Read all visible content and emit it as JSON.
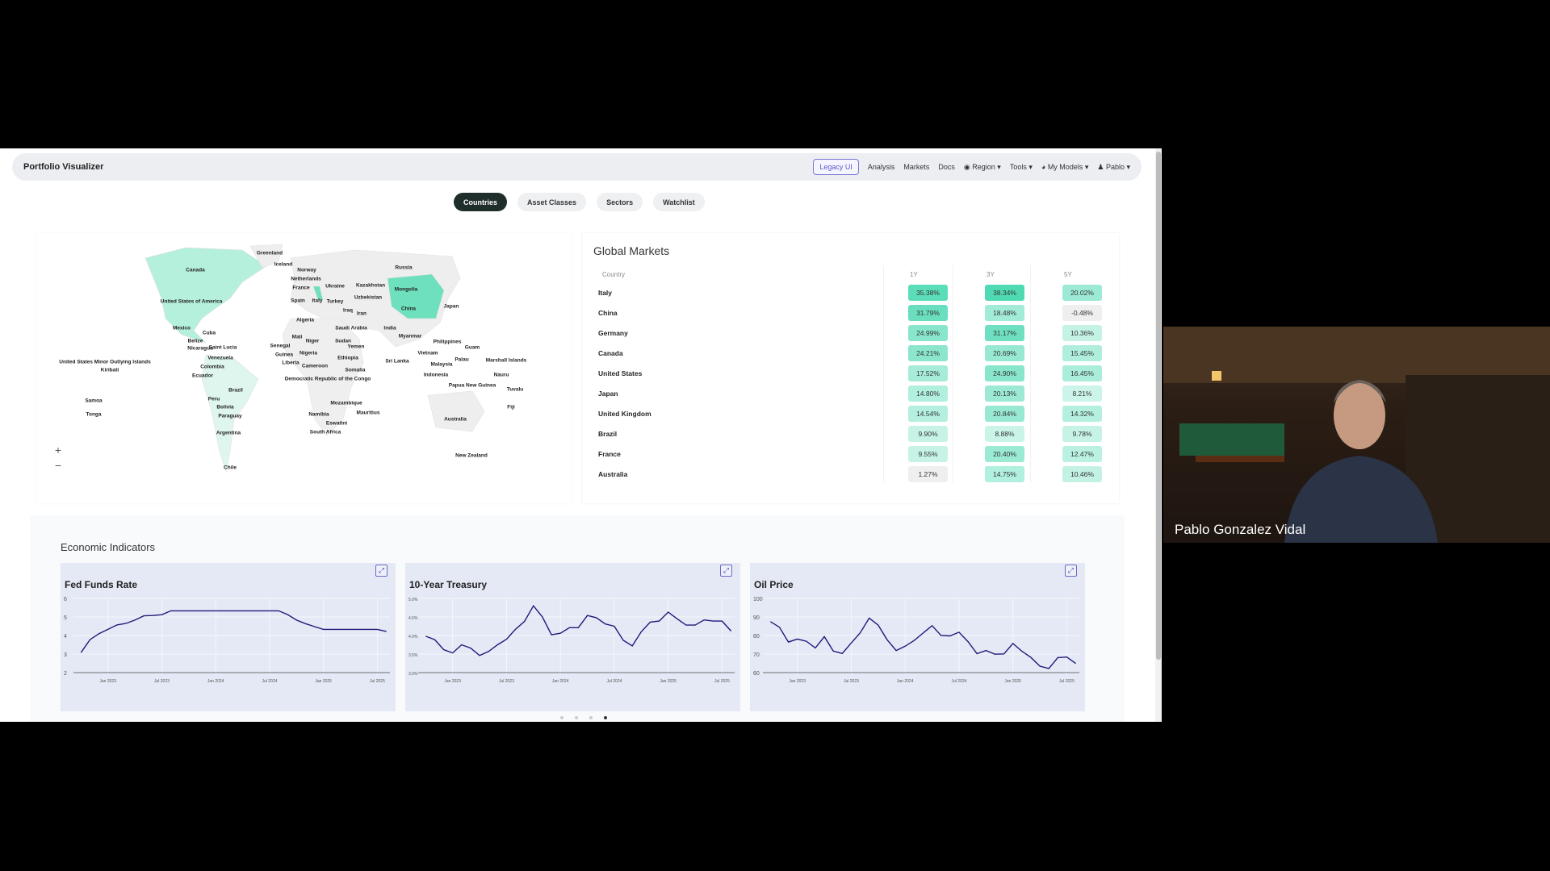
{
  "navbar": {
    "brand": "Portfolio Visualizer",
    "links": [
      {
        "label": "Legacy UI",
        "icon": ""
      },
      {
        "label": "Analysis",
        "icon": ""
      },
      {
        "label": "Markets",
        "icon": ""
      },
      {
        "label": "Docs",
        "icon": ""
      },
      {
        "label": "Region",
        "icon": "globe-icon",
        "dropdown": true
      },
      {
        "label": "Tools",
        "icon": "",
        "dropdown": true
      },
      {
        "label": "My Models",
        "icon": "pie-chart-icon",
        "dropdown": true
      },
      {
        "label": "Pablo",
        "icon": "user-icon",
        "dropdown": true
      }
    ]
  },
  "tabs": [
    {
      "label": "Countries",
      "active": true
    },
    {
      "label": "Asset Classes"
    },
    {
      "label": "Sectors"
    },
    {
      "label": "Watchlist"
    }
  ],
  "map": {
    "highlight_color": "#b5f0dc",
    "strong_color": "#6fe0bd",
    "labels": [
      "Greenland",
      "Iceland",
      "Canada",
      "Russia",
      "Norway",
      "Netherlands",
      "France",
      "Ukraine",
      "Kazakhstan",
      "Mongolia",
      "Uzbekistan",
      "United States of America",
      "Spain",
      "Italy",
      "Turkey",
      "China",
      "Japan",
      "Iraq",
      "Iran",
      "Algeria",
      "Saudi Arabia",
      "India",
      "Mexico",
      "Cuba",
      "Myanmar",
      "Belize",
      "Mali",
      "Niger",
      "Sudan",
      "Senegal",
      "Yemen",
      "Philippines",
      "Guam",
      "Nicaragua",
      "Saint Lucia",
      "Guinea",
      "Nigeria",
      "Ethiopia",
      "Vietnam",
      "Palau",
      "Marshall Islands",
      "United States Minor Outlying Islands",
      "Venezuela",
      "Liberia",
      "Cameroon",
      "Kiribati",
      "Colombia",
      "Malaysia",
      "Sri Lanka",
      "Somalia",
      "Nauru",
      "Indonesia",
      "Ecuador",
      "Democratic Republic of the Congo",
      "Papua New Guinea",
      "Tuvalu",
      "Brazil",
      "Samoa",
      "Peru",
      "Fiji",
      "Mozambique",
      "Bolivia",
      "Mauritius",
      "Namibia",
      "Tonga",
      "Paraguay",
      "Australia",
      "Eswatini",
      "Argentina",
      "South Africa",
      "New Zealand",
      "Chile"
    ],
    "zoom_in": "+",
    "zoom_out": "−"
  },
  "markets": {
    "title": "Global Markets",
    "columns": [
      "Country",
      "1Y",
      "3Y",
      "5Y"
    ],
    "rows": [
      {
        "country": "Italy",
        "values": [
          "35.38%",
          "38.34%",
          "20.02%"
        ]
      },
      {
        "country": "China",
        "values": [
          "31.79%",
          "18.48%",
          "-0.48%"
        ]
      },
      {
        "country": "Germany",
        "values": [
          "24.99%",
          "31.17%",
          "10.36%"
        ]
      },
      {
        "country": "Canada",
        "values": [
          "24.21%",
          "20.69%",
          "15.45%"
        ]
      },
      {
        "country": "United States",
        "values": [
          "17.52%",
          "24.90%",
          "16.45%"
        ]
      },
      {
        "country": "Japan",
        "values": [
          "14.80%",
          "20.13%",
          "8.21%"
        ]
      },
      {
        "country": "United Kingdom",
        "values": [
          "14.54%",
          "20.84%",
          "14.32%"
        ]
      },
      {
        "country": "Brazil",
        "values": [
          "9.90%",
          "8.88%",
          "9.78%"
        ]
      },
      {
        "country": "France",
        "values": [
          "9.55%",
          "20.40%",
          "12.47%"
        ]
      },
      {
        "country": "Australia",
        "values": [
          "1.27%",
          "14.75%",
          "10.46%"
        ]
      }
    ]
  },
  "economic": {
    "title": "Economic Indicators",
    "expand_icon": "expand-icon",
    "carousel_pages": 4,
    "carousel_active": 3
  },
  "chart_data": [
    {
      "type": "line",
      "title": "Fed Funds Rate",
      "ylim": [
        2,
        6
      ],
      "yticks": [
        "2",
        "3",
        "4",
        "5",
        "6"
      ],
      "line_color": "#1f1a7a",
      "xticks": [
        "Jan 2023",
        "Jul 2023",
        "Jan 2024",
        "Jul 2024",
        "Jan 2025",
        "Jul 2025"
      ],
      "x": [
        "2022-10",
        "2022-11",
        "2022-12",
        "2023-01",
        "2023-02",
        "2023-03",
        "2023-04",
        "2023-05",
        "2023-06",
        "2023-07",
        "2023-08",
        "2023-09",
        "2023-10",
        "2023-11",
        "2023-12",
        "2024-01",
        "2024-02",
        "2024-03",
        "2024-04",
        "2024-05",
        "2024-06",
        "2024-07",
        "2024-08",
        "2024-09",
        "2024-10",
        "2024-11",
        "2024-12",
        "2025-01",
        "2025-02",
        "2025-03",
        "2025-04",
        "2025-05",
        "2025-06",
        "2025-07",
        "2025-08"
      ],
      "y": [
        3.08,
        3.78,
        4.1,
        4.33,
        4.57,
        4.65,
        4.83,
        5.06,
        5.08,
        5.12,
        5.33,
        5.33,
        5.33,
        5.33,
        5.33,
        5.33,
        5.33,
        5.33,
        5.33,
        5.33,
        5.33,
        5.33,
        5.33,
        5.13,
        4.83,
        4.64,
        4.48,
        4.33,
        4.33,
        4.33,
        4.33,
        4.33,
        4.33,
        4.33,
        4.22
      ]
    },
    {
      "type": "line",
      "title": "10-Year Treasury",
      "ylim": [
        3.0,
        5.0
      ],
      "yticks": [
        "3.0%",
        "3.5%",
        "4.0%",
        "4.5%",
        "5.0%"
      ],
      "line_color": "#1f1a7a",
      "xticks": [
        "Jan 2023",
        "Jul 2023",
        "Jan 2024",
        "Jul 2024",
        "Jan 2025",
        "Jul 2025"
      ],
      "x": [
        "2022-10",
        "2022-11",
        "2022-12",
        "2023-01",
        "2023-02",
        "2023-03",
        "2023-04",
        "2023-05",
        "2023-06",
        "2023-07",
        "2023-08",
        "2023-09",
        "2023-10",
        "2023-11",
        "2023-12",
        "2024-01",
        "2024-02",
        "2024-03",
        "2024-04",
        "2024-05",
        "2024-06",
        "2024-07",
        "2024-08",
        "2024-09",
        "2024-10",
        "2024-11",
        "2024-12",
        "2025-01",
        "2025-02",
        "2025-03",
        "2025-04",
        "2025-05",
        "2025-06",
        "2025-07",
        "2025-08"
      ],
      "y": [
        3.98,
        3.89,
        3.62,
        3.53,
        3.75,
        3.66,
        3.46,
        3.57,
        3.75,
        3.9,
        4.17,
        4.38,
        4.8,
        4.5,
        4.02,
        4.06,
        4.21,
        4.21,
        4.54,
        4.48,
        4.31,
        4.25,
        3.87,
        3.72,
        4.1,
        4.36,
        4.39,
        4.63,
        4.45,
        4.28,
        4.28,
        4.42,
        4.39,
        4.39,
        4.12
      ]
    },
    {
      "type": "line",
      "title": "Oil Price",
      "ylim": [
        60,
        100
      ],
      "yticks": [
        "60",
        "70",
        "80",
        "90",
        "100"
      ],
      "line_color": "#1f1a7a",
      "xticks": [
        "Jan 2023",
        "Jul 2023",
        "Jan 2024",
        "Jul 2024",
        "Jan 2025",
        "Jul 2025"
      ],
      "x": [
        "2022-10",
        "2022-11",
        "2022-12",
        "2023-01",
        "2023-02",
        "2023-03",
        "2023-04",
        "2023-05",
        "2023-06",
        "2023-07",
        "2023-08",
        "2023-09",
        "2023-10",
        "2023-11",
        "2023-12",
        "2024-01",
        "2024-02",
        "2024-03",
        "2024-04",
        "2024-05",
        "2024-06",
        "2024-07",
        "2024-08",
        "2024-09",
        "2024-10",
        "2024-11",
        "2024-12",
        "2025-01",
        "2025-02",
        "2025-03",
        "2025-04",
        "2025-05",
        "2025-06",
        "2025-07",
        "2025-08"
      ],
      "y": [
        87.5,
        84.5,
        76.5,
        78.1,
        76.9,
        73.3,
        79.4,
        71.6,
        70.3,
        76.0,
        81.5,
        89.4,
        85.6,
        77.7,
        71.9,
        74.2,
        77.3,
        81.3,
        85.3,
        80.0,
        79.8,
        81.8,
        76.7,
        70.2,
        71.9,
        69.9,
        70.1,
        75.7,
        71.5,
        68.2,
        63.5,
        62.2,
        68.1,
        68.4,
        64.9
      ]
    }
  ],
  "webcam": {
    "name": "Pablo Gonzalez Vidal"
  }
}
